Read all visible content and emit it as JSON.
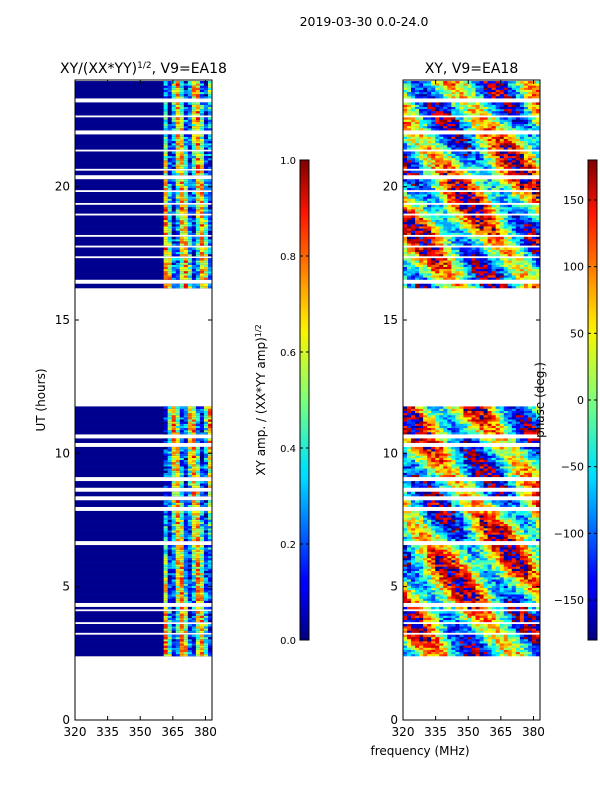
{
  "figure_title": "2019-03-30 0.0-24.0",
  "xlabel": "frequency (MHz)",
  "chart_data": [
    {
      "type": "heatmap",
      "title_main": "XY/(XX*YY)",
      "title_sup": "1/2",
      "title_tail": ", V9=EA18",
      "ylabel": "UT (hours)",
      "xlim": [
        320,
        383
      ],
      "ylim": [
        0,
        24
      ],
      "xticks": [
        "320",
        "335",
        "350",
        "365",
        "380"
      ],
      "xtick_values": [
        320,
        335,
        350,
        365,
        380
      ],
      "yticks": [
        "0",
        "5",
        "10",
        "15",
        "20"
      ],
      "ytick_values": [
        0,
        5,
        10,
        15,
        20
      ],
      "data_ranges_ut": [
        [
          2.4,
          11.7
        ],
        [
          16.2,
          23.9
        ]
      ],
      "active_freq_range": [
        360,
        383
      ],
      "blank_rows_ut": [
        3.2,
        3.6,
        4.1,
        4.3,
        6.6,
        7.9,
        8.3,
        8.6,
        9.0,
        10.3,
        10.6,
        16.4,
        17.3,
        17.7,
        18.1,
        18.9,
        19.3,
        19.8,
        20.3,
        20.6,
        21.3,
        22.0,
        22.6,
        23.2
      ],
      "colorbar": {
        "label_main": "XY amp. / (XX*YY amp)",
        "label_sup": "1/2",
        "min": 0.0,
        "max": 1.0,
        "ticks": [
          "0.0",
          "0.2",
          "0.4",
          "0.6",
          "0.8",
          "1.0"
        ],
        "tick_values": [
          0.0,
          0.2,
          0.4,
          0.6,
          0.8,
          1.0
        ]
      }
    },
    {
      "type": "heatmap",
      "title_main": "XY, V9=EA18",
      "title_sup": "",
      "title_tail": "",
      "ylabel": "",
      "xlim": [
        320,
        383
      ],
      "ylim": [
        0,
        24
      ],
      "xticks": [
        "320",
        "335",
        "350",
        "365",
        "380"
      ],
      "xtick_values": [
        320,
        335,
        350,
        365,
        380
      ],
      "yticks": [
        "0",
        "5",
        "10",
        "15",
        "20"
      ],
      "ytick_values": [
        0,
        5,
        10,
        15,
        20
      ],
      "data_ranges_ut": [
        [
          2.4,
          11.7
        ],
        [
          16.2,
          23.9
        ]
      ],
      "active_freq_range": [
        320,
        383
      ],
      "blank_rows_ut": [
        3.2,
        3.6,
        4.1,
        4.3,
        6.6,
        7.9,
        8.3,
        8.6,
        9.0,
        10.3,
        10.6,
        16.4,
        17.3,
        17.7,
        18.1,
        18.9,
        19.3,
        19.8,
        20.3,
        20.6,
        21.3,
        22.0,
        22.6,
        23.2
      ],
      "colorbar": {
        "label_main": "phase (deg.)",
        "label_sup": "",
        "min": -180,
        "max": 180,
        "ticks": [
          "−150",
          "−100",
          "−50",
          "0",
          "50",
          "100",
          "150"
        ],
        "tick_values": [
          -150,
          -100,
          -50,
          0,
          50,
          100,
          150
        ]
      }
    }
  ]
}
